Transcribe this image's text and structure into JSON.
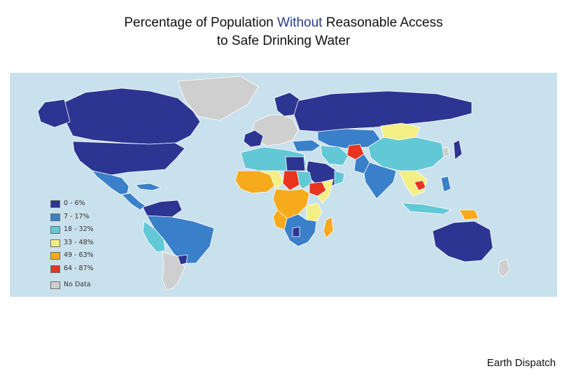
{
  "title": {
    "line1_before": "Percentage of Population ",
    "line1_highlight": "Without",
    "line1_after": " Reasonable Access",
    "line2": "to Safe Drinking Water"
  },
  "colors": {
    "ocean": "#c9e1ec",
    "highlight_text": "#2b3a8f",
    "border": "#ffffff"
  },
  "legend": {
    "placement": "lower-left",
    "items": [
      {
        "label": "0 - 6%",
        "color": "#2c3592"
      },
      {
        "label": "7 - 17%",
        "color": "#3a7fc9"
      },
      {
        "label": "18 - 32%",
        "color": "#62c8d6"
      },
      {
        "label": "33 - 48%",
        "color": "#f4ef84"
      },
      {
        "label": "49 - 63%",
        "color": "#f6aa1c"
      },
      {
        "label": "64 - 87%",
        "color": "#e8331f"
      },
      {
        "label": "No Data",
        "color": "#cfcfcf"
      }
    ]
  },
  "credit": "Earth Dispatch"
}
